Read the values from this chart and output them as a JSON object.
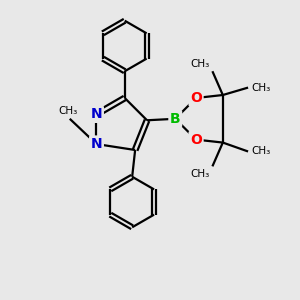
{
  "bg_color": "#e8e8e8",
  "atom_colors": {
    "C": "#000000",
    "N": "#0000cc",
    "B": "#00bb00",
    "O": "#ff0000"
  },
  "bond_color": "#000000",
  "bond_width": 1.6,
  "figsize": [
    3.0,
    3.0
  ],
  "dpi": 100,
  "xlim": [
    0,
    10
  ],
  "ylim": [
    0,
    10
  ]
}
